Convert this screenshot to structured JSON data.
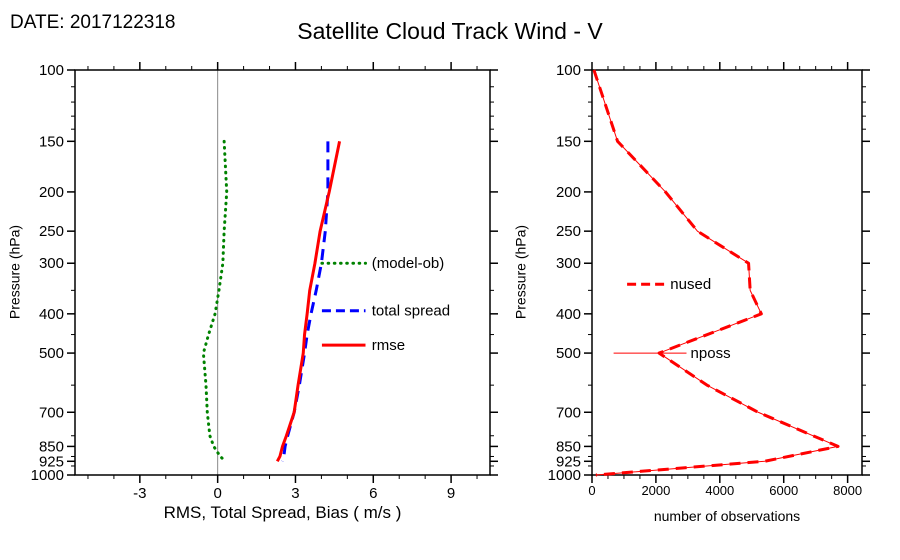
{
  "header": {
    "date_label": "DATE: 2017122318",
    "title": "Satellite Cloud Track Wind - V"
  },
  "chart_data": [
    {
      "type": "line",
      "panel": "left",
      "xlabel": "RMS, Total Spread, Bias ( m/s )",
      "ylabel": "Pressure (hPa)",
      "xlim": [
        -5.5,
        10.5
      ],
      "xticks": [
        -3,
        0,
        3,
        6,
        9
      ],
      "xminor_step": 1,
      "yscale": "log",
      "ylim": [
        100,
        1000
      ],
      "yticks": [
        100,
        150,
        200,
        250,
        300,
        400,
        500,
        700,
        850,
        925,
        1000
      ],
      "yminor": [
        110,
        120,
        130,
        140,
        350,
        450,
        600,
        800,
        900,
        950
      ],
      "zero_line": true,
      "grid": false,
      "pressure": [
        150,
        200,
        250,
        300,
        350,
        400,
        450,
        500,
        600,
        700,
        800,
        850,
        900,
        925
      ],
      "series": [
        {
          "name": "(model-ob)",
          "color": "#008200",
          "style": "dotted",
          "width": 3,
          "values": [
            0.25,
            0.35,
            0.25,
            0.2,
            0.05,
            -0.1,
            -0.35,
            -0.55,
            -0.45,
            -0.4,
            -0.3,
            -0.15,
            0.1,
            0.3
          ]
        },
        {
          "name": "total spread",
          "color": "#0000ff",
          "style": "dashed",
          "width": 3,
          "values": [
            4.25,
            4.25,
            4.15,
            4.0,
            3.8,
            3.6,
            3.45,
            3.35,
            3.15,
            2.95,
            2.7,
            2.6,
            2.55,
            2.5
          ]
        },
        {
          "name": "rmse",
          "color": "#ff0000",
          "style": "solid",
          "width": 3,
          "values": [
            4.7,
            4.3,
            3.95,
            3.75,
            3.55,
            3.45,
            3.35,
            3.3,
            3.1,
            2.95,
            2.65,
            2.5,
            2.4,
            2.3
          ]
        }
      ],
      "legend": [
        {
          "label": "(model-ob)",
          "series": 0,
          "pressure": 300,
          "x0": 0.595,
          "x1": 0.7,
          "tx": 0.715
        },
        {
          "label": "total spread",
          "series": 1,
          "pressure": 393,
          "x0": 0.595,
          "x1": 0.7,
          "tx": 0.715
        },
        {
          "label": "rmse",
          "series": 2,
          "pressure": 478,
          "x0": 0.595,
          "x1": 0.7,
          "tx": 0.715
        }
      ]
    },
    {
      "type": "line",
      "panel": "right",
      "xlabel": "number of observations",
      "ylabel": "Pressure (hPa)",
      "xlim": [
        0,
        8450
      ],
      "xticks": [
        0,
        2000,
        4000,
        6000,
        8000
      ],
      "xminor_step": 500,
      "yscale": "log",
      "ylim": [
        100,
        1000
      ],
      "yticks": [
        100,
        150,
        200,
        250,
        300,
        400,
        500,
        700,
        850,
        925,
        1000
      ],
      "yminor": [
        110,
        120,
        130,
        140,
        350,
        450,
        600,
        800,
        900,
        950
      ],
      "zero_line": false,
      "grid": false,
      "pressure": [
        100,
        150,
        200,
        250,
        300,
        350,
        400,
        500,
        600,
        700,
        850,
        925,
        1000
      ],
      "series": [
        {
          "name": "nused",
          "color": "#ff0000",
          "style": "dashed",
          "width": 3,
          "values": [
            60,
            800,
            2300,
            3300,
            4900,
            4950,
            5300,
            2100,
            3600,
            5200,
            7700,
            5400,
            120
          ]
        },
        {
          "name": "nposs",
          "color": "#ff0000",
          "style": "solid",
          "width": 1,
          "values": [
            60,
            800,
            2300,
            3300,
            4900,
            4950,
            5300,
            2100,
            3600,
            5200,
            7700,
            5400,
            120
          ]
        }
      ],
      "legend": [
        {
          "label": "nused",
          "series": 0,
          "pressure": 338,
          "x0": 0.13,
          "x1": 0.27,
          "tx": 0.29
        },
        {
          "label": "nposs",
          "series": 1,
          "pressure": 500,
          "x0": 0.08,
          "x1": 0.35,
          "tx": 0.365
        }
      ]
    }
  ]
}
